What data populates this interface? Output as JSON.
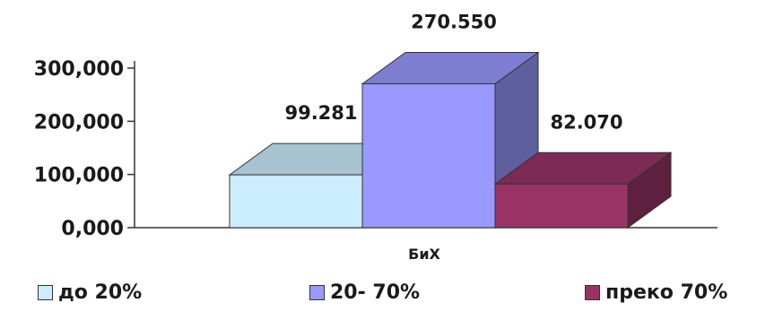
{
  "chart_data": {
    "type": "bar",
    "categories": [
      "БиХ"
    ],
    "series": [
      {
        "name": "до 20%",
        "values": [
          99.281
        ],
        "value_label": "99.281",
        "color": "#CCECFF"
      },
      {
        "name": "20- 70%",
        "values": [
          270.55
        ],
        "value_label": "270.550",
        "color": "#9999FF"
      },
      {
        "name": "преко 70%",
        "values": [
          82.07
        ],
        "value_label": "82.070",
        "color": "#993366"
      }
    ],
    "yticks": [
      0,
      100,
      200,
      300
    ],
    "ytick_labels": [
      "0,000",
      "100,000",
      "200,000",
      "300,000"
    ],
    "ylim": [
      0,
      300
    ],
    "legend_position": "bottom",
    "style": "3d-clustered-column",
    "grid": false
  }
}
